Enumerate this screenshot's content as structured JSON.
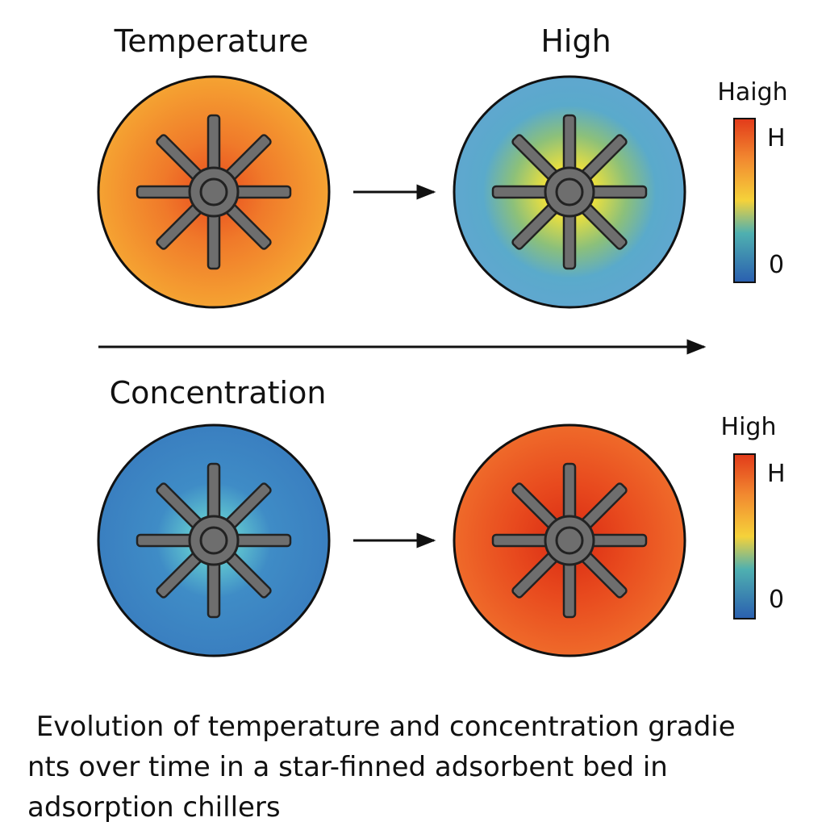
{
  "labels": {
    "temperature": "Temperature",
    "high": "High",
    "concentration": "Concentration"
  },
  "colorbars": [
    {
      "title": "Haigh",
      "top": "H",
      "bottom": "0"
    },
    {
      "title": "High",
      "top": "H",
      "bottom": "0"
    }
  ],
  "caption": [
    " Evolution of temperature and concentration gradie",
    "nts over time in a star-finned adsorbent bed in",
    "adsorption chillers"
  ]
}
